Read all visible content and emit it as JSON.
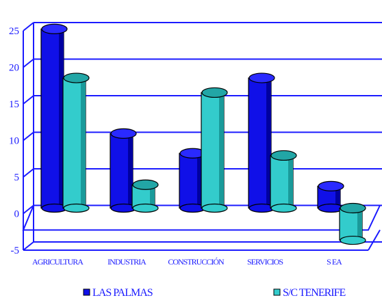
{
  "chart_data": {
    "type": "bar",
    "title": "",
    "xlabel": "",
    "ylabel": "",
    "categories": [
      "AGRICULTURA",
      "INDUSTRIA",
      "CONSTRUCCIÓN",
      "SERVICIOS",
      "S EA"
    ],
    "series": [
      {
        "name": "LAS PALMAS",
        "values": [
          24.5,
          10.2,
          7.5,
          17.8,
          3.0
        ],
        "color": "#1010e8"
      },
      {
        "name": "S/C TENERIFE",
        "values": [
          17.8,
          3.2,
          15.8,
          7.2,
          -4.4
        ],
        "color": "#33cccc"
      }
    ],
    "ylim": [
      -5,
      25
    ],
    "yticks": [
      25,
      20,
      15,
      10,
      5,
      0,
      -5
    ],
    "grid": true,
    "legend": "bottom",
    "axis_color": "#1a1aff"
  }
}
